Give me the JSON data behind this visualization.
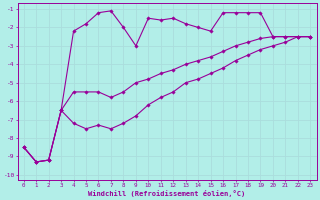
{
  "xlabel": "Windchill (Refroidissement éolien,°C)",
  "bg_color": "#b2eee8",
  "grid_color": "#aadddd",
  "line_color": "#990099",
  "xlim": [
    -0.5,
    23.5
  ],
  "ylim": [
    -10.3,
    -0.7
  ],
  "xticks": [
    0,
    1,
    2,
    3,
    4,
    5,
    6,
    7,
    8,
    9,
    10,
    11,
    12,
    13,
    14,
    15,
    16,
    17,
    18,
    19,
    20,
    21,
    22,
    23
  ],
  "yticks": [
    -10,
    -9,
    -8,
    -7,
    -6,
    -5,
    -4,
    -3,
    -2,
    -1
  ],
  "series1_x": [
    0,
    1,
    2,
    3,
    4,
    5,
    6,
    7,
    8,
    9,
    10,
    11,
    12,
    13,
    14,
    15,
    16,
    17,
    18,
    19,
    20,
    21,
    22,
    23
  ],
  "series1_y": [
    -8.5,
    -9.3,
    -9.2,
    -6.5,
    -2.2,
    -1.8,
    -1.2,
    -1.1,
    -2.0,
    -3.0,
    -1.5,
    -1.6,
    -1.5,
    -1.8,
    -2.0,
    -2.2,
    -1.2,
    -1.2,
    -1.2,
    -1.2,
    -2.5,
    -2.5,
    -2.5,
    -2.5
  ],
  "series2_x": [
    0,
    1,
    2,
    3,
    4,
    5,
    6,
    7,
    8,
    9,
    10,
    11,
    12,
    13,
    14,
    15,
    16,
    17,
    18,
    19,
    20,
    21,
    22,
    23
  ],
  "series2_y": [
    -8.5,
    -9.3,
    -9.2,
    -6.5,
    -5.5,
    -5.5,
    -5.5,
    -5.8,
    -5.5,
    -5.0,
    -4.8,
    -4.5,
    -4.3,
    -4.0,
    -3.8,
    -3.6,
    -3.3,
    -3.0,
    -2.8,
    -2.6,
    -2.5,
    -2.5,
    -2.5,
    -2.5
  ],
  "series3_x": [
    0,
    1,
    2,
    3,
    4,
    5,
    6,
    7,
    8,
    9,
    10,
    11,
    12,
    13,
    14,
    15,
    16,
    17,
    18,
    19,
    20,
    21,
    22,
    23
  ],
  "series3_y": [
    -8.5,
    -9.3,
    -9.2,
    -6.5,
    -7.2,
    -7.5,
    -7.3,
    -7.5,
    -7.2,
    -6.8,
    -6.2,
    -5.8,
    -5.5,
    -5.0,
    -4.8,
    -4.5,
    -4.2,
    -3.8,
    -3.5,
    -3.2,
    -3.0,
    -2.8,
    -2.5,
    -2.5
  ]
}
